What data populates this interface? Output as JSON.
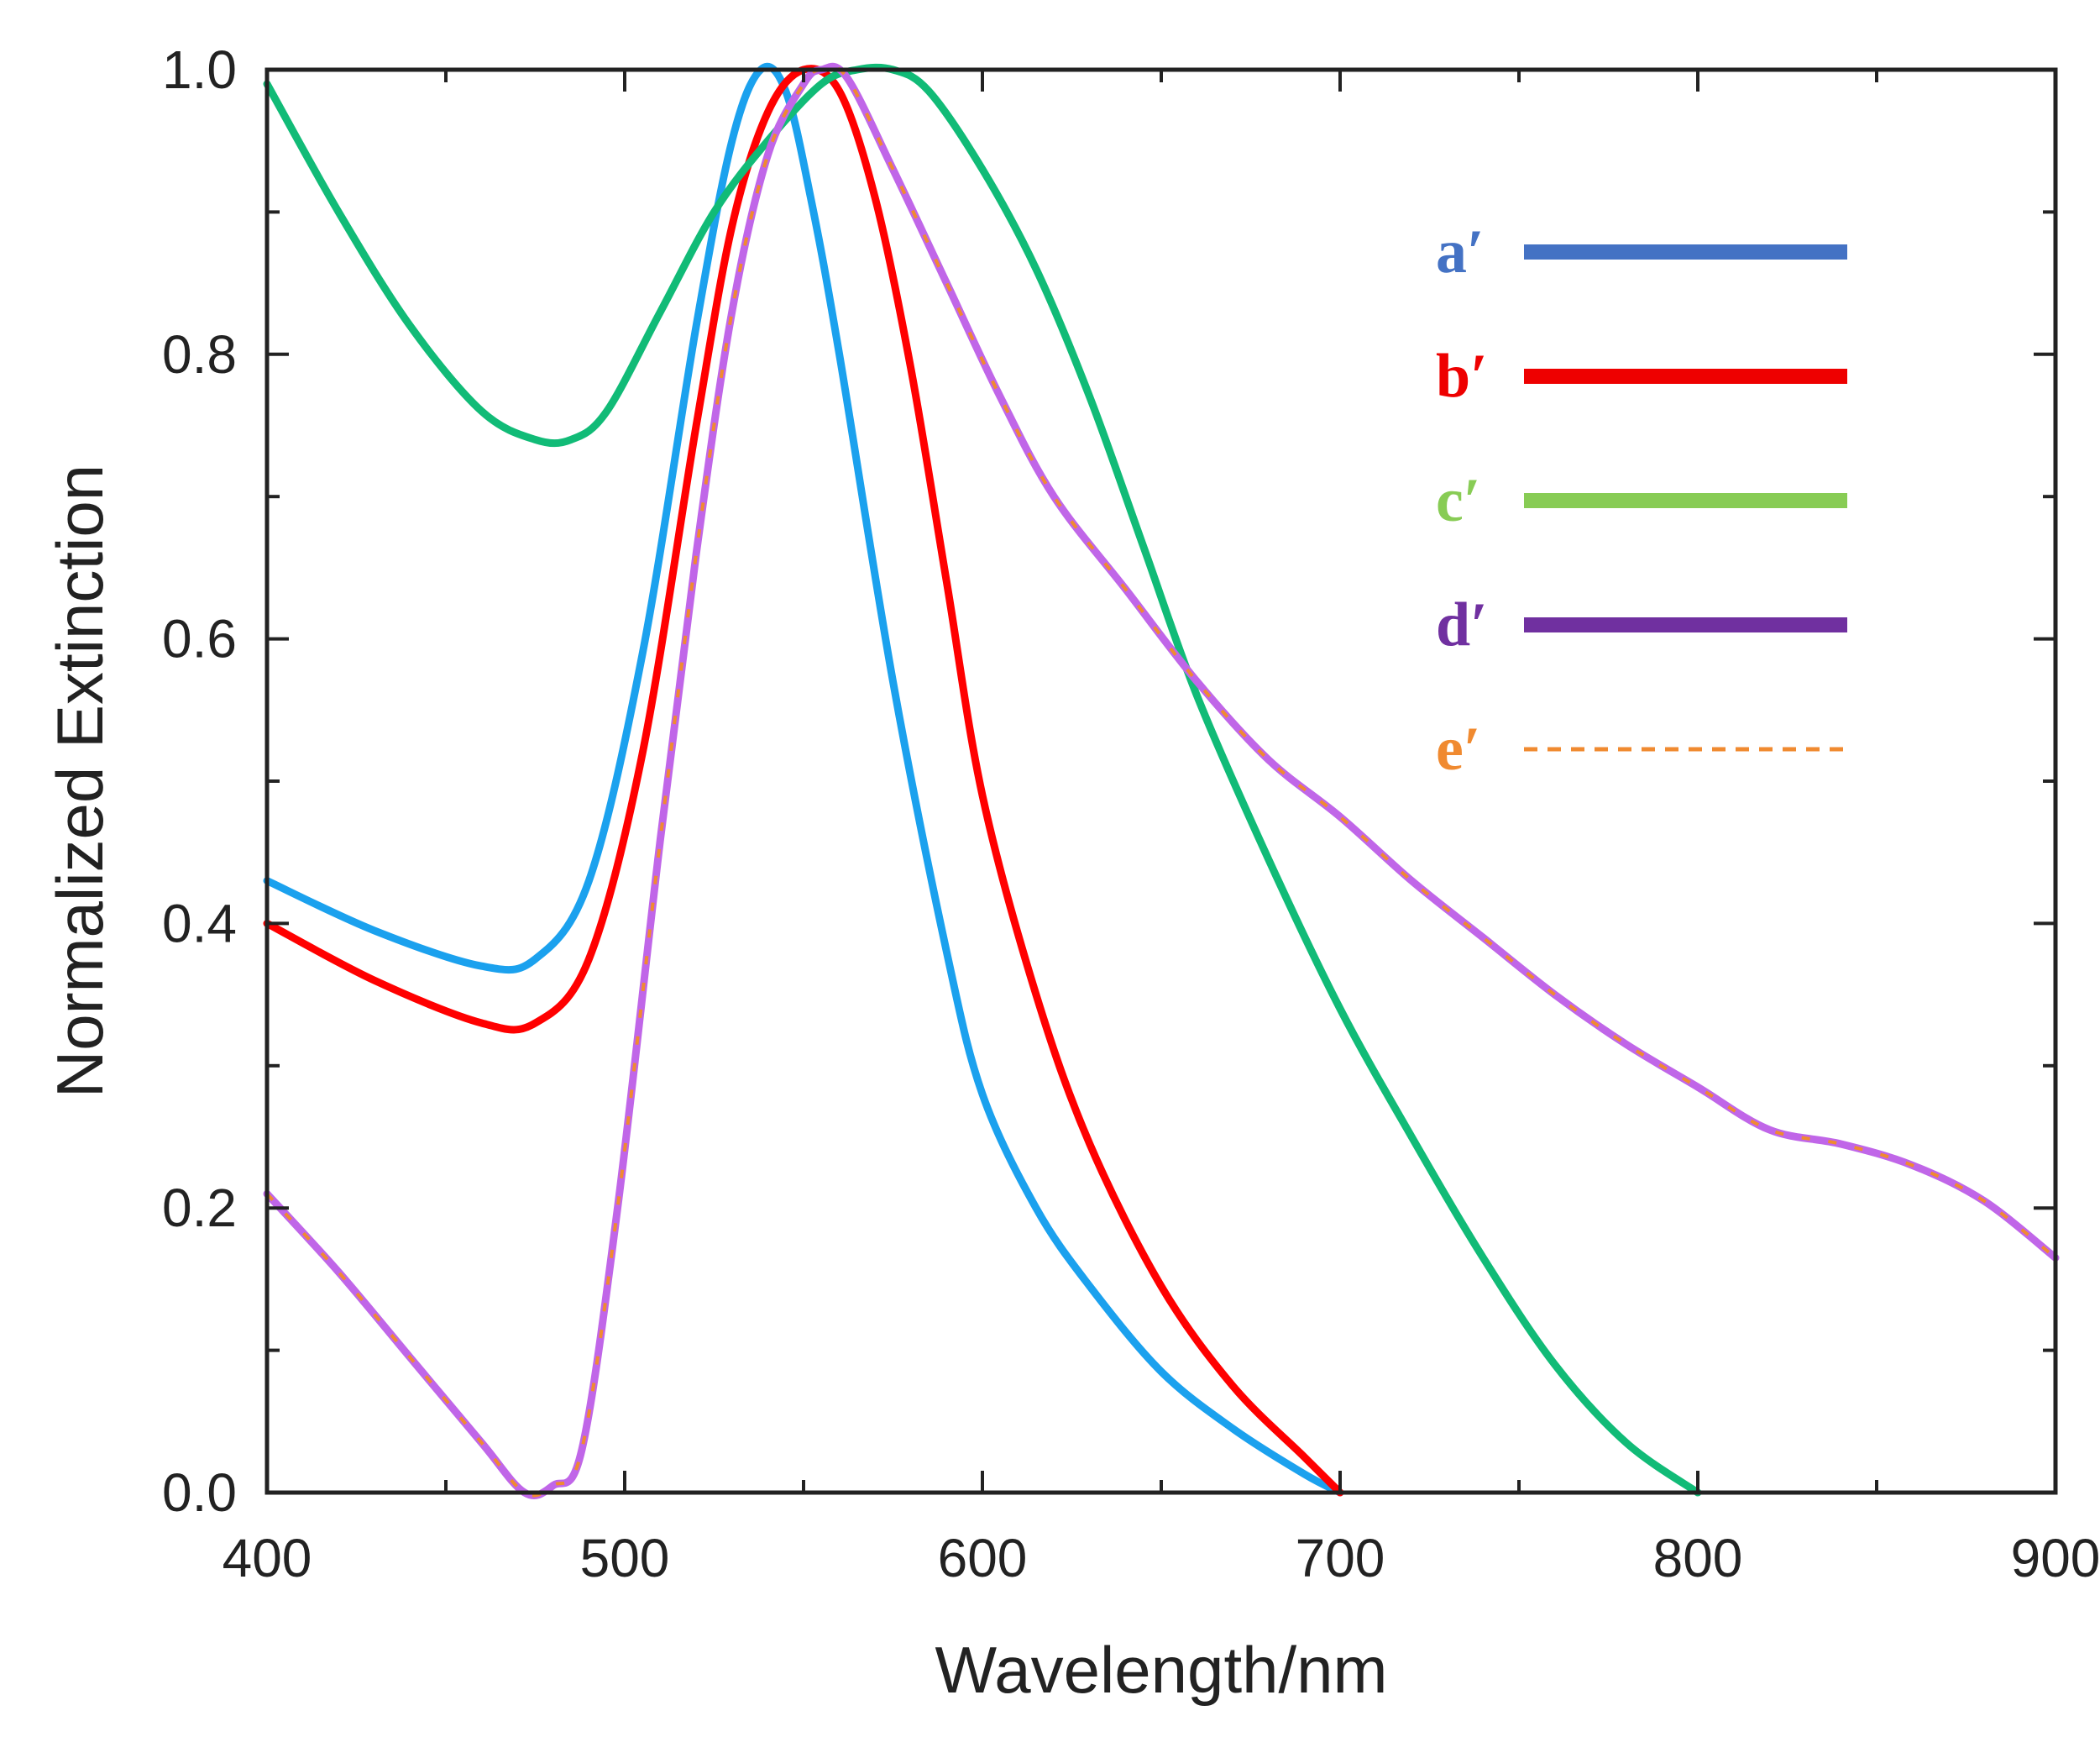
{
  "chart_data": {
    "type": "line",
    "title": "",
    "xlabel": "Wavelength/nm",
    "ylabel": "Normalized Extinction",
    "xlim": [
      400,
      900
    ],
    "ylim": [
      0.0,
      1.0
    ],
    "x_ticks": [
      400,
      500,
      600,
      700,
      800,
      900
    ],
    "x_tick_labels": [
      "400",
      "500",
      "600",
      "700",
      "800",
      "900"
    ],
    "y_ticks": [
      0.0,
      0.2,
      0.4,
      0.6,
      0.8,
      1.0
    ],
    "y_tick_labels": [
      "0.0",
      "0.2",
      "0.4",
      "0.6",
      "0.8",
      "1.0"
    ],
    "grid": false,
    "legend_position": "top-right",
    "series": [
      {
        "name": "a′",
        "color": "#1ba1ee",
        "legend_color": "#4472c4",
        "dash": false,
        "points": [
          [
            400,
            0.43
          ],
          [
            430,
            0.395
          ],
          [
            460,
            0.37
          ],
          [
            475,
            0.375
          ],
          [
            490,
            0.43
          ],
          [
            505,
            0.59
          ],
          [
            520,
            0.82
          ],
          [
            530,
            0.95
          ],
          [
            538,
            1.0
          ],
          [
            545,
            0.985
          ],
          [
            552,
            0.91
          ],
          [
            560,
            0.8
          ],
          [
            575,
            0.57
          ],
          [
            590,
            0.38
          ],
          [
            600,
            0.28
          ],
          [
            615,
            0.2
          ],
          [
            630,
            0.145
          ],
          [
            650,
            0.085
          ],
          [
            670,
            0.045
          ],
          [
            690,
            0.013
          ],
          [
            700,
            0.0
          ]
        ]
      },
      {
        "name": "b′",
        "color": "#ff0000",
        "legend_color": "#ee0000",
        "dash": false,
        "points": [
          [
            400,
            0.4
          ],
          [
            430,
            0.36
          ],
          [
            460,
            0.33
          ],
          [
            475,
            0.33
          ],
          [
            490,
            0.375
          ],
          [
            505,
            0.52
          ],
          [
            520,
            0.75
          ],
          [
            530,
            0.89
          ],
          [
            540,
            0.97
          ],
          [
            550,
            1.0
          ],
          [
            560,
            0.985
          ],
          [
            570,
            0.91
          ],
          [
            580,
            0.79
          ],
          [
            590,
            0.64
          ],
          [
            600,
            0.49
          ],
          [
            615,
            0.35
          ],
          [
            630,
            0.245
          ],
          [
            650,
            0.145
          ],
          [
            670,
            0.075
          ],
          [
            690,
            0.025
          ],
          [
            700,
            0.0
          ]
        ]
      },
      {
        "name": "c′",
        "color": "#11bb77",
        "legend_color": "#88cc55",
        "dash": false,
        "points": [
          [
            400,
            0.99
          ],
          [
            420,
            0.9
          ],
          [
            440,
            0.82
          ],
          [
            460,
            0.76
          ],
          [
            475,
            0.74
          ],
          [
            485,
            0.74
          ],
          [
            495,
            0.76
          ],
          [
            510,
            0.83
          ],
          [
            525,
            0.9
          ],
          [
            540,
            0.95
          ],
          [
            555,
            0.99
          ],
          [
            565,
            1.0
          ],
          [
            575,
            1.0
          ],
          [
            585,
            0.985
          ],
          [
            600,
            0.93
          ],
          [
            615,
            0.86
          ],
          [
            630,
            0.77
          ],
          [
            645,
            0.665
          ],
          [
            660,
            0.56
          ],
          [
            680,
            0.445
          ],
          [
            700,
            0.34
          ],
          [
            720,
            0.25
          ],
          [
            740,
            0.165
          ],
          [
            760,
            0.09
          ],
          [
            780,
            0.035
          ],
          [
            800,
            0.0
          ]
        ]
      },
      {
        "name": "d′",
        "color": "#c066e8",
        "legend_color": "#7030a0",
        "dash": false,
        "points": [
          [
            400,
            0.21
          ],
          [
            420,
            0.155
          ],
          [
            440,
            0.095
          ],
          [
            460,
            0.035
          ],
          [
            472,
            0.0
          ],
          [
            480,
            0.005
          ],
          [
            488,
            0.03
          ],
          [
            498,
            0.2
          ],
          [
            510,
            0.46
          ],
          [
            520,
            0.66
          ],
          [
            530,
            0.83
          ],
          [
            540,
            0.94
          ],
          [
            550,
            0.99
          ],
          [
            555,
            1.0
          ],
          [
            562,
            0.995
          ],
          [
            575,
            0.93
          ],
          [
            590,
            0.85
          ],
          [
            605,
            0.77
          ],
          [
            620,
            0.7
          ],
          [
            640,
            0.635
          ],
          [
            660,
            0.57
          ],
          [
            680,
            0.515
          ],
          [
            700,
            0.475
          ],
          [
            720,
            0.43
          ],
          [
            740,
            0.39
          ],
          [
            760,
            0.35
          ],
          [
            780,
            0.315
          ],
          [
            800,
            0.285
          ],
          [
            820,
            0.255
          ],
          [
            840,
            0.245
          ],
          [
            860,
            0.23
          ],
          [
            880,
            0.205
          ],
          [
            900,
            0.165
          ]
        ]
      },
      {
        "name": "e′",
        "color": "#f08a30",
        "legend_color": "#f08a30",
        "dash": true,
        "points": [
          [
            400,
            0.21
          ],
          [
            420,
            0.155
          ],
          [
            440,
            0.095
          ],
          [
            460,
            0.035
          ],
          [
            472,
            0.0
          ],
          [
            480,
            0.005
          ],
          [
            488,
            0.03
          ],
          [
            498,
            0.2
          ],
          [
            510,
            0.46
          ],
          [
            520,
            0.66
          ],
          [
            530,
            0.83
          ],
          [
            540,
            0.94
          ],
          [
            550,
            0.99
          ],
          [
            555,
            1.0
          ],
          [
            562,
            0.995
          ],
          [
            575,
            0.93
          ],
          [
            590,
            0.85
          ],
          [
            605,
            0.77
          ],
          [
            620,
            0.7
          ],
          [
            640,
            0.635
          ],
          [
            660,
            0.57
          ],
          [
            680,
            0.515
          ],
          [
            700,
            0.475
          ],
          [
            720,
            0.43
          ],
          [
            740,
            0.39
          ],
          [
            760,
            0.35
          ],
          [
            780,
            0.315
          ],
          [
            800,
            0.285
          ],
          [
            820,
            0.255
          ],
          [
            840,
            0.245
          ],
          [
            860,
            0.23
          ],
          [
            880,
            0.205
          ],
          [
            900,
            0.165
          ]
        ]
      }
    ]
  }
}
